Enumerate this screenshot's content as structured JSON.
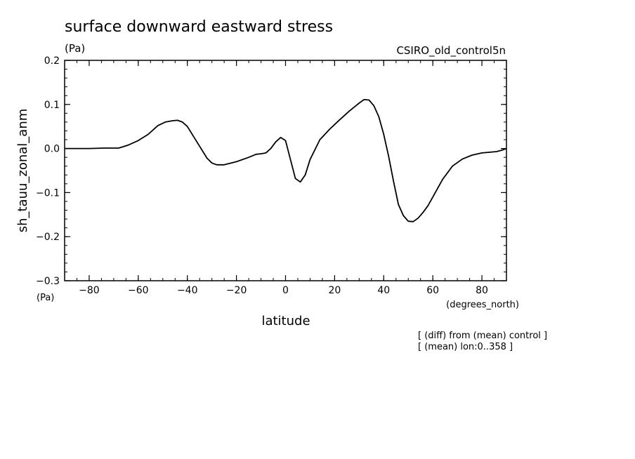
{
  "chart_data": {
    "type": "line",
    "title": "surface downward eastward stress",
    "title_units": "(Pa)",
    "dataset": "CSIRO_old_control5n",
    "xlabel": "latitude",
    "xunits": "(degrees_north)",
    "ylabel": "sh_tauu_zonal_anm",
    "yunits": "(Pa)",
    "xlim": [
      -90,
      90
    ],
    "ylim": [
      -0.3,
      0.2
    ],
    "xticks": [
      -80,
      -60,
      -40,
      -20,
      0,
      20,
      40,
      60,
      80
    ],
    "yticks": [
      -0.3,
      -0.2,
      -0.1,
      0.0,
      0.1,
      0.2
    ],
    "ytick_labels": [
      "−0.3",
      "−0.2",
      "−0.1",
      "0.0",
      "0.1",
      "0.2"
    ],
    "xtick_labels": [
      "−80",
      "−60",
      "−40",
      "−20",
      "0",
      "20",
      "40",
      "60",
      "80"
    ],
    "notes": [
      "[ (diff) from (mean) control ]",
      "[ (mean) lon:0..358 ]"
    ],
    "grid": false,
    "series": [
      {
        "x": [
          -90,
          -80,
          -74,
          -68,
          -64,
          -60,
          -56,
          -52,
          -49,
          -46,
          -44,
          -42,
          -40,
          -36,
          -32,
          -30,
          -28,
          -25,
          -20,
          -15,
          -12,
          -10,
          -8,
          -6,
          -4,
          -2,
          0,
          2,
          4,
          6,
          8,
          10,
          14,
          18,
          22,
          26,
          30,
          32,
          34,
          36,
          38,
          40,
          42,
          44,
          46,
          48,
          50,
          52,
          54,
          56,
          58,
          60,
          64,
          68,
          72,
          76,
          80,
          84,
          86,
          88,
          90
        ],
        "y": [
          0.0,
          0.0,
          0.001,
          0.001,
          0.008,
          0.018,
          0.032,
          0.052,
          0.06,
          0.063,
          0.064,
          0.06,
          0.05,
          0.014,
          -0.022,
          -0.033,
          -0.037,
          -0.037,
          -0.03,
          -0.02,
          -0.013,
          -0.012,
          -0.01,
          0.0,
          0.015,
          0.025,
          0.018,
          -0.025,
          -0.068,
          -0.076,
          -0.06,
          -0.025,
          0.02,
          0.044,
          0.065,
          0.085,
          0.103,
          0.111,
          0.11,
          0.097,
          0.072,
          0.032,
          -0.018,
          -0.075,
          -0.127,
          -0.152,
          -0.165,
          -0.166,
          -0.158,
          -0.145,
          -0.13,
          -0.11,
          -0.07,
          -0.04,
          -0.024,
          -0.015,
          -0.01,
          -0.008,
          -0.007,
          -0.004,
          0.0
        ]
      }
    ]
  }
}
